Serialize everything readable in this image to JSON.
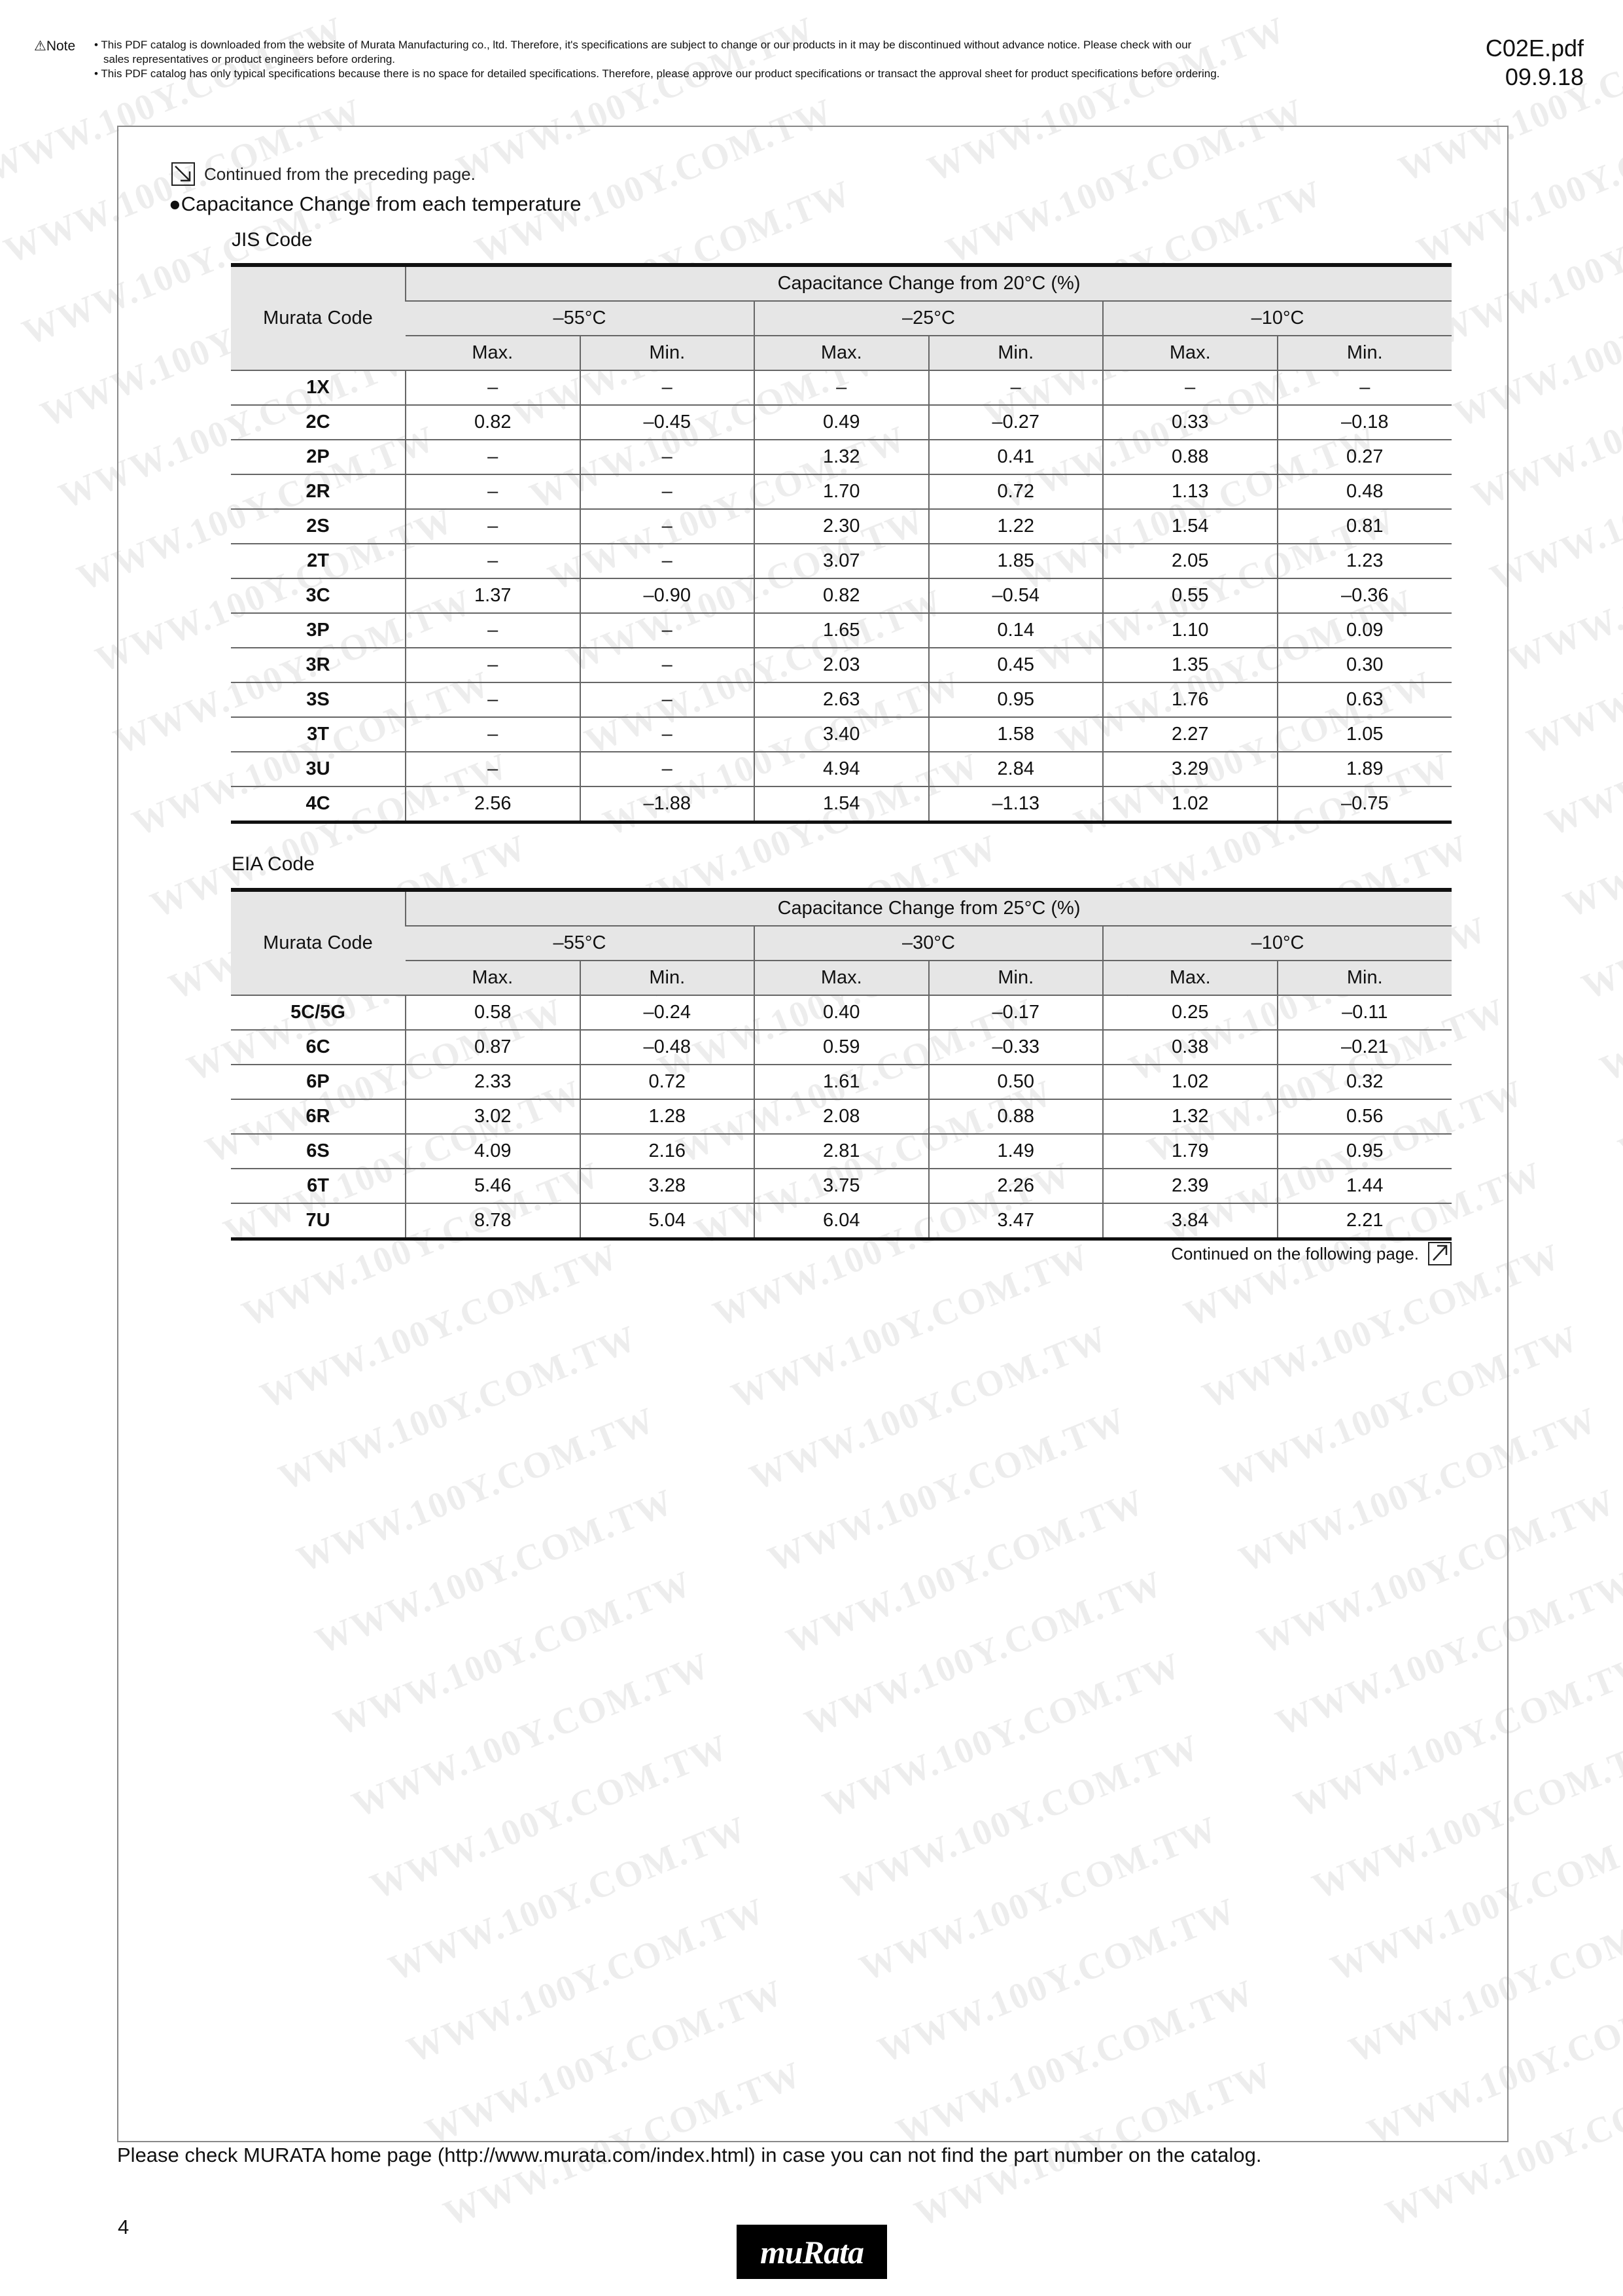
{
  "header": {
    "note_label": "⚠Note",
    "note_lines": [
      "• This PDF catalog is downloaded from the website of Murata Manufacturing co., ltd. Therefore,  it's specifications are subject to change or our products in it may be discontinued without advance notice. Please check with our",
      "sales representatives or product engineers before ordering.",
      "• This PDF catalog has only typical specifications because there is no space for detailed specifications. Therefore, please approve our product specifications or transact the approval sheet for product specifications before ordering."
    ],
    "doc_id": "C02E.pdf",
    "date": "09.9.18"
  },
  "continued_from": "Continued from the preceding page.",
  "section_title": "●Capacitance Change from each temperature",
  "jis": {
    "label": "JIS Code",
    "code_header": "Murata Code",
    "group_header": "Capacitance Change from 20°C (%)",
    "temps": [
      "–55°C",
      "–25°C",
      "–10°C"
    ],
    "sub": [
      "Max.",
      "Min.",
      "Max.",
      "Min.",
      "Max.",
      "Min."
    ],
    "rows": [
      [
        "1X",
        "–",
        "–",
        "–",
        "–",
        "–",
        "–"
      ],
      [
        "2C",
        "0.82",
        "–0.45",
        "0.49",
        "–0.27",
        "0.33",
        "–0.18"
      ],
      [
        "2P",
        "–",
        "–",
        "1.32",
        "0.41",
        "0.88",
        "0.27"
      ],
      [
        "2R",
        "–",
        "–",
        "1.70",
        "0.72",
        "1.13",
        "0.48"
      ],
      [
        "2S",
        "–",
        "–",
        "2.30",
        "1.22",
        "1.54",
        "0.81"
      ],
      [
        "2T",
        "–",
        "–",
        "3.07",
        "1.85",
        "2.05",
        "1.23"
      ],
      [
        "3C",
        "1.37",
        "–0.90",
        "0.82",
        "–0.54",
        "0.55",
        "–0.36"
      ],
      [
        "3P",
        "–",
        "–",
        "1.65",
        "0.14",
        "1.10",
        "0.09"
      ],
      [
        "3R",
        "–",
        "–",
        "2.03",
        "0.45",
        "1.35",
        "0.30"
      ],
      [
        "3S",
        "–",
        "–",
        "2.63",
        "0.95",
        "1.76",
        "0.63"
      ],
      [
        "3T",
        "–",
        "–",
        "3.40",
        "1.58",
        "2.27",
        "1.05"
      ],
      [
        "3U",
        "–",
        "–",
        "4.94",
        "2.84",
        "3.29",
        "1.89"
      ],
      [
        "4C",
        "2.56",
        "–1.88",
        "1.54",
        "–1.13",
        "1.02",
        "–0.75"
      ]
    ]
  },
  "eia": {
    "label": "EIA Code",
    "code_header": "Murata Code",
    "group_header": "Capacitance Change from 25°C (%)",
    "temps": [
      "–55°C",
      "–30°C",
      "–10°C"
    ],
    "sub": [
      "Max.",
      "Min.",
      "Max.",
      "Min.",
      "Max.",
      "Min."
    ],
    "rows": [
      [
        "5C/5G",
        "0.58",
        "–0.24",
        "0.40",
        "–0.17",
        "0.25",
        "–0.11"
      ],
      [
        "6C",
        "0.87",
        "–0.48",
        "0.59",
        "–0.33",
        "0.38",
        "–0.21"
      ],
      [
        "6P",
        "2.33",
        "0.72",
        "1.61",
        "0.50",
        "1.02",
        "0.32"
      ],
      [
        "6R",
        "3.02",
        "1.28",
        "2.08",
        "0.88",
        "1.32",
        "0.56"
      ],
      [
        "6S",
        "4.09",
        "2.16",
        "2.81",
        "1.49",
        "1.79",
        "0.95"
      ],
      [
        "6T",
        "5.46",
        "3.28",
        "3.75",
        "2.26",
        "2.39",
        "1.44"
      ],
      [
        "7U",
        "8.78",
        "5.04",
        "6.04",
        "3.47",
        "3.84",
        "2.21"
      ]
    ]
  },
  "continued_on": "Continued on the following page.",
  "footer_text": "Please check MURATA home page (http://www.murata.com/index.html) in case you can not find the part number on the catalog.",
  "page_number": "4",
  "logo_text": "muRata",
  "watermark_text": "WWW.100Y.COM.TW"
}
